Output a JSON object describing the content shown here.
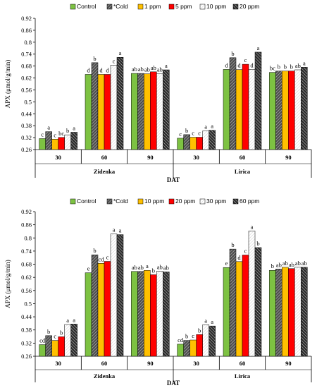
{
  "chart_data": [
    {
      "type": "bar",
      "legend": [
        "Control",
        "*Cold",
        "1 ppm",
        "5 ppm",
        "10 ppm",
        "20 ppm"
      ],
      "ylabel": "APX (μmol/g/min)",
      "xlabel": "DAT",
      "ylim": [
        0.26,
        0.92
      ],
      "yticks": [
        "0.26",
        "0.32",
        "0.38",
        "0.44",
        "0.5",
        "0.56",
        "0.62",
        "0.68",
        "0.74",
        "0.8",
        "0.86",
        "0.92"
      ],
      "groups": [
        "Zidenka",
        "Lirica"
      ],
      "categories": [
        "30",
        "60",
        "90",
        "30",
        "60",
        "90"
      ],
      "series": [
        {
          "name": "Control",
          "values": [
            0.315,
            0.638,
            0.643,
            0.317,
            0.663,
            0.648
          ]
        },
        {
          "name": "*Cold",
          "values": [
            0.35,
            0.697,
            0.643,
            0.335,
            0.722,
            0.655
          ]
        },
        {
          "name": "1 ppm",
          "values": [
            0.312,
            0.638,
            0.641,
            0.322,
            0.662,
            0.655
          ]
        },
        {
          "name": "5 ppm",
          "values": [
            0.321,
            0.638,
            0.651,
            0.322,
            0.689,
            0.655
          ]
        },
        {
          "name": "10 ppm",
          "values": [
            0.334,
            0.684,
            0.641,
            0.354,
            0.663,
            0.661
          ]
        },
        {
          "name": "20 ppm",
          "values": [
            0.347,
            0.724,
            0.661,
            0.357,
            0.75,
            0.674
          ]
        }
      ],
      "bar_labels": [
        [
          "c",
          "a",
          "c",
          "bc",
          "b",
          "a"
        ],
        [
          "d",
          "b",
          "d",
          "d",
          "c",
          "a"
        ],
        [
          "ab",
          "ab",
          "ab",
          "ab",
          "ab",
          "a"
        ],
        [
          "c",
          "b",
          "c",
          "c",
          "a",
          "a"
        ],
        [
          "d",
          "b",
          "d",
          "c",
          "d",
          "a"
        ],
        [
          "bc",
          "b",
          "b",
          "b",
          "ab",
          "a"
        ]
      ]
    },
    {
      "type": "bar",
      "legend": [
        "Control",
        "*Cold",
        "10 ppm",
        "20 ppm",
        "30 ppm",
        "60 ppm"
      ],
      "ylabel": "APX (μmol/g/min)",
      "xlabel": "DAT",
      "ylim": [
        0.26,
        0.92
      ],
      "yticks": [
        "0.26",
        "0.32",
        "0.38",
        "0.44",
        "0.5",
        "0.56",
        "0.62",
        "0.68",
        "0.74",
        "0.8",
        "0.86",
        "0.92"
      ],
      "groups": [
        "Zidenka",
        "Lirica"
      ],
      "categories": [
        "30",
        "60",
        "90",
        "30",
        "60",
        "90"
      ],
      "series": [
        {
          "name": "Control",
          "values": [
            0.313,
            0.641,
            0.647,
            0.315,
            0.665,
            0.652
          ]
        },
        {
          "name": "*Cold",
          "values": [
            0.354,
            0.723,
            0.647,
            0.332,
            0.749,
            0.658
          ]
        },
        {
          "name": "10 ppm",
          "values": [
            0.332,
            0.684,
            0.652,
            0.334,
            0.692,
            0.666
          ]
        },
        {
          "name": "20 ppm",
          "values": [
            0.349,
            0.693,
            0.632,
            0.359,
            0.722,
            0.66
          ]
        },
        {
          "name": "30 ppm",
          "values": [
            0.405,
            0.818,
            0.648,
            0.404,
            0.832,
            0.666
          ]
        },
        {
          "name": "60 ppm",
          "values": [
            0.407,
            0.815,
            0.645,
            0.398,
            0.756,
            0.666
          ]
        }
      ],
      "bar_labels": [
        [
          "cd",
          "b",
          "c",
          "b",
          "a",
          "a"
        ],
        [
          "e",
          "b",
          "cd",
          "c",
          "a",
          "a"
        ],
        [
          "ab",
          "ab",
          "a",
          "b",
          "ab",
          "ab"
        ],
        [
          "cd",
          "b",
          "c",
          "b",
          "a",
          "a"
        ],
        [
          "e",
          "b",
          "d",
          "c",
          "a",
          "b"
        ],
        [
          "b",
          "ab",
          "ab",
          "ab",
          "ab",
          "ab"
        ]
      ]
    }
  ],
  "colors": {
    "series": [
      "#7dc242",
      "#666666",
      "#ffc000",
      "#ff0000",
      "#f4f4f4",
      "#3a3a3a"
    ],
    "hatched": [
      false,
      true,
      false,
      false,
      true,
      true
    ],
    "axis": "#000000"
  }
}
